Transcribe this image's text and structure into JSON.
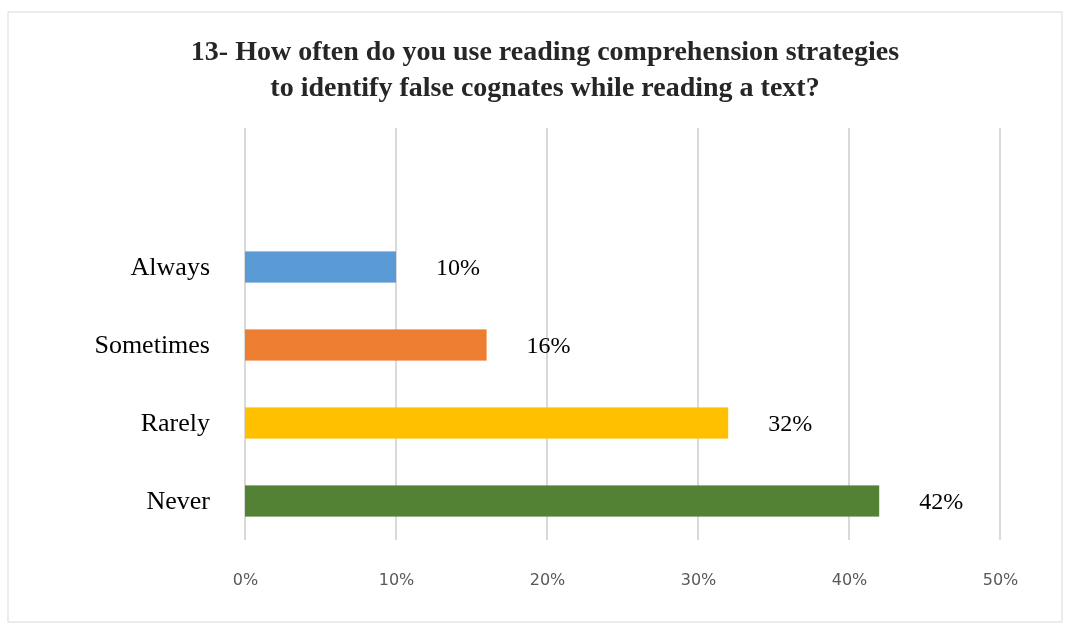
{
  "chart_data": {
    "type": "bar",
    "orientation": "horizontal",
    "title": "13- How often do you use reading comprehension strategies\nto identify false cognates while reading a text?",
    "categories": [
      "Always",
      "Sometimes",
      "Rarely",
      "Never"
    ],
    "values": [
      10,
      16,
      32,
      42
    ],
    "colors": [
      "#5b9bd5",
      "#ed7d31",
      "#ffc000",
      "#548235"
    ],
    "value_labels": [
      "10%",
      "16%",
      "32%",
      "42%"
    ],
    "xlim": [
      0,
      50
    ],
    "xticks": [
      {
        "value": 0,
        "label": "0%"
      },
      {
        "value": 10,
        "label": "10%"
      },
      {
        "value": 20,
        "label": "20%"
      },
      {
        "value": 30,
        "label": "30%"
      },
      {
        "value": 40,
        "label": "40%"
      },
      {
        "value": 50,
        "label": "50%"
      }
    ],
    "grid": "x"
  }
}
